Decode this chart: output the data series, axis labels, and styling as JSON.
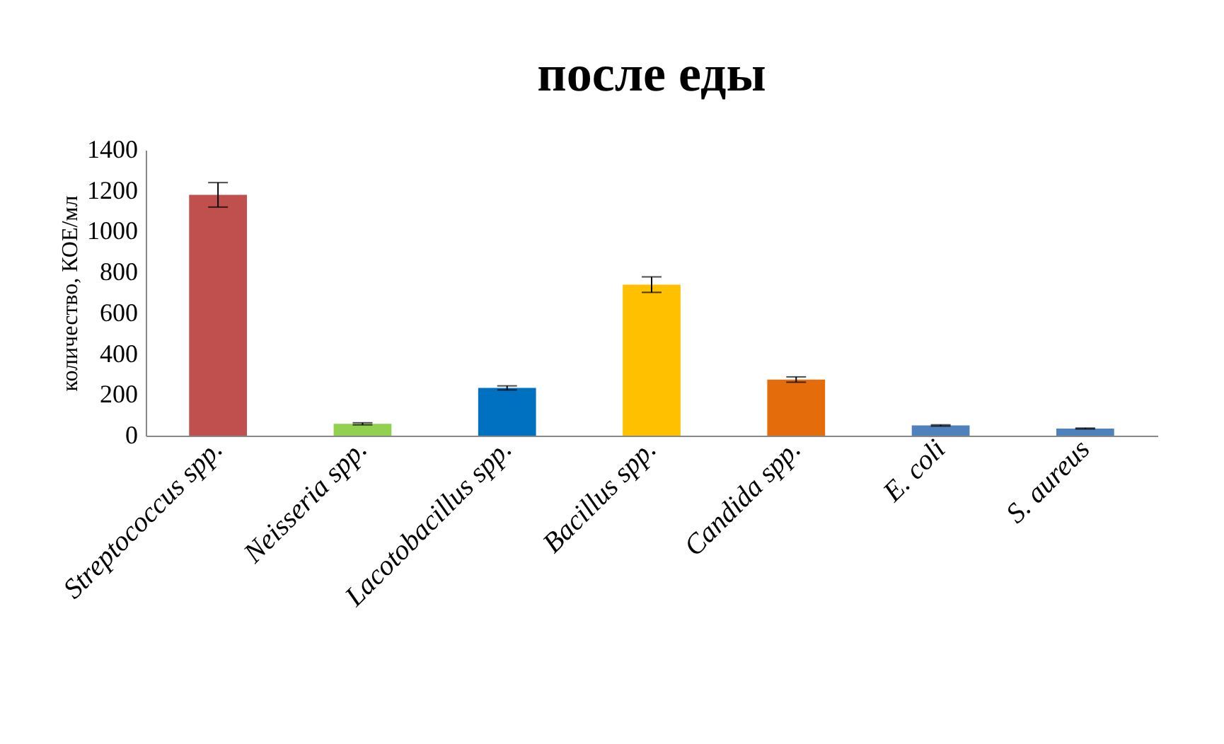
{
  "chart_data": {
    "type": "bar",
    "title": "после еды",
    "ylabel": "количество, КОЕ/мл",
    "categories": [
      "Streptococcus spp.",
      "Neisseria spp.",
      "Lacotobacillus spp.",
      "Bacillus spp.",
      "Candida spp.",
      "E. coli",
      "S. aureus"
    ],
    "values": [
      1180,
      58,
      234,
      740,
      275,
      50,
      35
    ],
    "errors": [
      60,
      5,
      10,
      38,
      13,
      3,
      2
    ],
    "colors": [
      "#c0504d",
      "#92d050",
      "#0070c0",
      "#ffc000",
      "#e46c0a",
      "#4f81bd",
      "#4f81bd"
    ],
    "ylim": [
      0,
      1400
    ],
    "yticks": [
      0,
      200,
      400,
      600,
      800,
      1000,
      1200,
      1400
    ],
    "grid": false
  }
}
